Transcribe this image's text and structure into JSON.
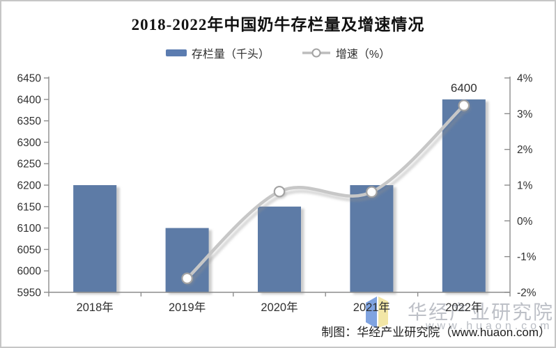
{
  "title": "2018-2022年中国奶牛存栏量及增速情况",
  "legend": {
    "bar_label": "存栏量（千头）",
    "line_label": "增速（%）"
  },
  "colors": {
    "bar": "#5d7ba6",
    "bar_legend": "#5b7cb0",
    "line": "#c7c7c7",
    "marker_fill": "#ffffff",
    "marker_stroke": "#a3a3a3",
    "axis": "#8c8c8c",
    "text": "#303030",
    "watermark_gray": "#979cab",
    "logo_blue": "#7fa3e0",
    "logo_yellow": "#f2e6a6"
  },
  "chart_data": {
    "type": "combo",
    "categories": [
      "2018年",
      "2019年",
      "2020年",
      "2021年",
      "2022年"
    ],
    "series": [
      {
        "name": "存栏量（千头）",
        "type": "bar",
        "axis": "left",
        "values": [
          6200,
          6100,
          6150,
          6200,
          6400
        ],
        "point_labels": [
          null,
          null,
          null,
          null,
          "6400"
        ]
      },
      {
        "name": "增速（%）",
        "type": "line",
        "axis": "right",
        "values": [
          null,
          -1.61,
          0.82,
          0.81,
          3.23
        ]
      }
    ],
    "left_axis": {
      "min": 5950,
      "max": 6450,
      "step": 50,
      "ticks": [
        "6450",
        "6400",
        "6350",
        "6300",
        "6250",
        "6200",
        "6150",
        "6100",
        "6050",
        "6000",
        "5950"
      ]
    },
    "right_axis": {
      "min": -2,
      "max": 4,
      "step": 1,
      "ticks": [
        "4%",
        "3%",
        "2%",
        "1%",
        "0%",
        "-1%",
        "-2%"
      ]
    },
    "grid": false,
    "legend_position": "top"
  },
  "watermark": {
    "name": "华经产业研究院",
    "url": "www.huaon.com"
  },
  "credit": "制图：华经产业研究院（www.huaon.com）"
}
